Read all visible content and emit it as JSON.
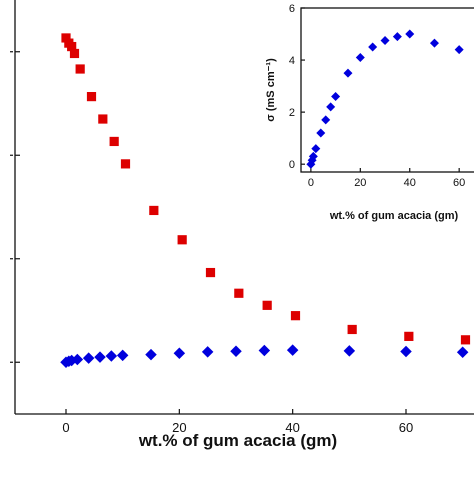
{
  "chart_data": [
    {
      "id": "main",
      "type": "scatter",
      "title": "",
      "xlabel": "wt.% of gum acacia (gm)",
      "ylabel": "",
      "xlim": [
        -9,
        72
      ],
      "ylim": [
        -0.15,
        1.05
      ],
      "x_ticks": [
        0,
        20,
        40,
        60
      ],
      "y_tick_positions": [
        0,
        0.3,
        0.6,
        0.9
      ],
      "grid": false,
      "series": [
        {
          "marker": "square",
          "color": "#dd0000",
          "points": [
            [
              0,
              0.94
            ],
            [
              0.5,
              0.925
            ],
            [
              1,
              0.915
            ],
            [
              1.5,
              0.895
            ],
            [
              2.5,
              0.85
            ],
            [
              4.5,
              0.77
            ],
            [
              6.5,
              0.705
            ],
            [
              8.5,
              0.64
            ],
            [
              10.5,
              0.575
            ],
            [
              15.5,
              0.44
            ],
            [
              20.5,
              0.355
            ],
            [
              25.5,
              0.26
            ],
            [
              30.5,
              0.2
            ],
            [
              35.5,
              0.165
            ],
            [
              40.5,
              0.135
            ],
            [
              50.5,
              0.095
            ],
            [
              60.5,
              0.075
            ],
            [
              70.5,
              0.065
            ]
          ]
        },
        {
          "marker": "diamond",
          "color": "#0000dd",
          "points": [
            [
              0,
              0.0
            ],
            [
              0.5,
              0.003
            ],
            [
              1,
              0.005
            ],
            [
              2,
              0.008
            ],
            [
              4,
              0.012
            ],
            [
              6,
              0.015
            ],
            [
              8,
              0.018
            ],
            [
              10,
              0.02
            ],
            [
              15,
              0.022
            ],
            [
              20,
              0.026
            ],
            [
              25,
              0.03
            ],
            [
              30,
              0.032
            ],
            [
              35,
              0.034
            ],
            [
              40,
              0.035
            ],
            [
              50,
              0.033
            ],
            [
              60,
              0.031
            ],
            [
              70,
              0.029
            ]
          ]
        }
      ]
    },
    {
      "id": "inset",
      "type": "scatter",
      "title": "",
      "xlabel": "wt.% of gum acacia (gm)",
      "ylabel": "σ (mS cm⁻¹)",
      "xlim": [
        -4,
        66
      ],
      "ylim": [
        -0.3,
        6
      ],
      "x_ticks": [
        0,
        20,
        40,
        60
      ],
      "y_ticks": [
        0,
        2,
        4,
        6
      ],
      "grid": false,
      "series": [
        {
          "marker": "diamond",
          "color": "#0000dd",
          "points": [
            [
              0,
              0.0
            ],
            [
              0.5,
              0.15
            ],
            [
              1,
              0.3
            ],
            [
              2,
              0.6
            ],
            [
              4,
              1.2
            ],
            [
              6,
              1.7
            ],
            [
              8,
              2.2
            ],
            [
              10,
              2.6
            ],
            [
              15,
              3.5
            ],
            [
              20,
              4.1
            ],
            [
              25,
              4.5
            ],
            [
              30,
              4.75
            ],
            [
              35,
              4.9
            ],
            [
              40,
              5.0
            ],
            [
              50,
              4.65
            ],
            [
              60,
              4.4
            ]
          ]
        }
      ]
    }
  ]
}
